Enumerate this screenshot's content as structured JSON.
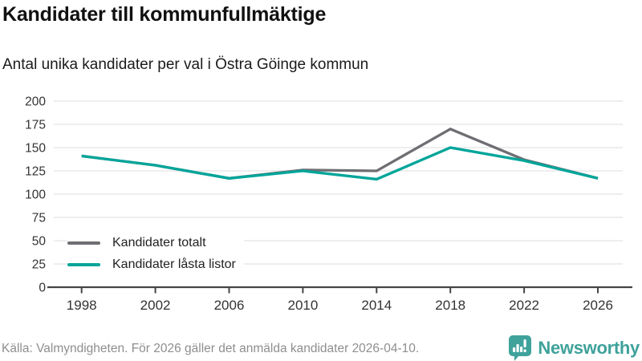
{
  "header": {
    "title": "Kandidater till kommunfullmäktige",
    "subtitle": "Antal unika kandidater per val i Östra Göinge kommun"
  },
  "chart_data": {
    "type": "line",
    "title": "Kandidater till kommunfullmäktige",
    "subtitle": "Antal unika kandidater per val i Östra Göinge kommun",
    "x": [
      1998,
      2002,
      2006,
      2010,
      2014,
      2018,
      2022,
      2026
    ],
    "series": [
      {
        "name": "Kandidater totalt",
        "color": "#6e6e73",
        "values": [
          141,
          131,
          117,
          126,
          125,
          170,
          137,
          117
        ]
      },
      {
        "name": "Kandidater låsta listor",
        "color": "#00a59a",
        "values": [
          141,
          131,
          117,
          125,
          116,
          150,
          136,
          117
        ]
      }
    ],
    "xlabel": "",
    "ylabel": "",
    "ylim": [
      0,
      200
    ],
    "ytick_step": 25,
    "xtick_labels": [
      "1998",
      "2002",
      "2006",
      "2010",
      "2014",
      "2018",
      "2022",
      "2026"
    ],
    "grid": "horizontal",
    "legend_position": "inside-bottom-left"
  },
  "footer": {
    "source": "Källa: Valmyndigheten. För 2026 gäller det anmälda kandidater 2026-04-10.",
    "brand": "Newsworthy"
  },
  "colors": {
    "accent_teal": "#00a59a",
    "series_gray": "#6e6e73",
    "brand_teal": "#3fa29b",
    "grid": "#e8e8e8",
    "axis": "#454545",
    "tick_text": "#333333"
  }
}
